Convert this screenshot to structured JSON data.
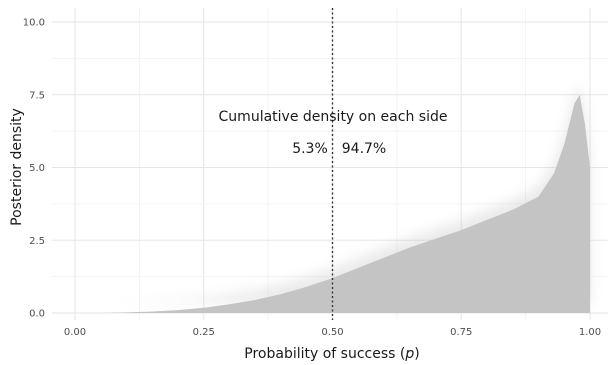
{
  "chart_data": {
    "type": "area",
    "xlabel": "Probability of success (p)",
    "ylabel": "Posterior density",
    "xlim": [
      0,
      1
    ],
    "ylim": [
      0,
      10.4
    ],
    "x_ticks": [
      "0.00",
      "0.25",
      "0.50",
      "0.75",
      "1.00"
    ],
    "x_tick_values": [
      0,
      0.25,
      0.5,
      0.75,
      1.0
    ],
    "y_ticks": [
      "0.0",
      "2.5",
      "5.0",
      "7.5",
      "10.0"
    ],
    "y_tick_values": [
      0,
      2.5,
      5.0,
      7.5,
      10.0
    ],
    "grid": true,
    "reference_line": {
      "x": 0.5,
      "style": "dotted"
    },
    "annotation_title": "Cumulative density on each side",
    "left_label": "5.3%",
    "right_label": "94.7%",
    "series": [
      {
        "x": [
          0.0,
          0.05,
          0.1,
          0.15,
          0.2,
          0.25,
          0.3,
          0.35,
          0.4,
          0.45,
          0.5,
          0.55,
          0.6,
          0.65,
          0.7,
          0.75,
          0.8,
          0.85,
          0.9,
          0.93,
          0.95,
          0.97,
          0.98,
          0.99,
          1.0
        ],
        "y": [
          0.0,
          0.0,
          0.02,
          0.05,
          0.1,
          0.18,
          0.3,
          0.45,
          0.65,
          0.9,
          1.2,
          1.55,
          1.9,
          2.25,
          2.55,
          2.85,
          3.2,
          3.55,
          4.0,
          4.8,
          5.8,
          7.2,
          7.5,
          6.5,
          5.0
        ]
      }
    ]
  }
}
